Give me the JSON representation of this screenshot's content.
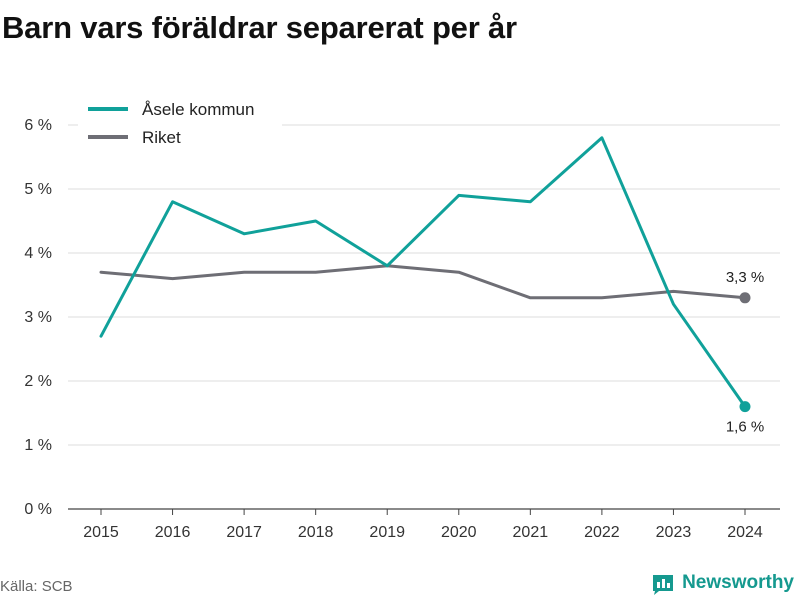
{
  "title": "Barn vars föräldrar separerat per år",
  "source": "Källa: SCB",
  "brand": {
    "name": "Newsworthy"
  },
  "colors": {
    "asele": "#10a19a",
    "riket": "#6e6e75",
    "grid": "#dddddd",
    "brand": "#15998f"
  },
  "chart_data": {
    "type": "line",
    "title": "Barn vars föräldrar separerat per år",
    "xlabel": "",
    "ylabel": "",
    "x": [
      2015,
      2016,
      2017,
      2018,
      2019,
      2020,
      2021,
      2022,
      2023,
      2024
    ],
    "ylim": [
      0,
      6
    ],
    "yticks": [
      0,
      1,
      2,
      3,
      4,
      5,
      6
    ],
    "ytick_labels": [
      "0 %",
      "1 %",
      "2 %",
      "3 %",
      "4 %",
      "5 %",
      "6 %"
    ],
    "grid": true,
    "legend_position": "top-left",
    "series": [
      {
        "name": "Åsele kommun",
        "color": "#10a19a",
        "values": [
          2.7,
          4.8,
          4.3,
          4.5,
          3.8,
          4.9,
          4.8,
          5.8,
          3.2,
          1.6
        ],
        "end_label": "1,6 %"
      },
      {
        "name": "Riket",
        "color": "#6e6e75",
        "values": [
          3.7,
          3.6,
          3.7,
          3.7,
          3.8,
          3.7,
          3.3,
          3.3,
          3.4,
          3.3
        ],
        "end_label": "3,3 %"
      }
    ]
  }
}
